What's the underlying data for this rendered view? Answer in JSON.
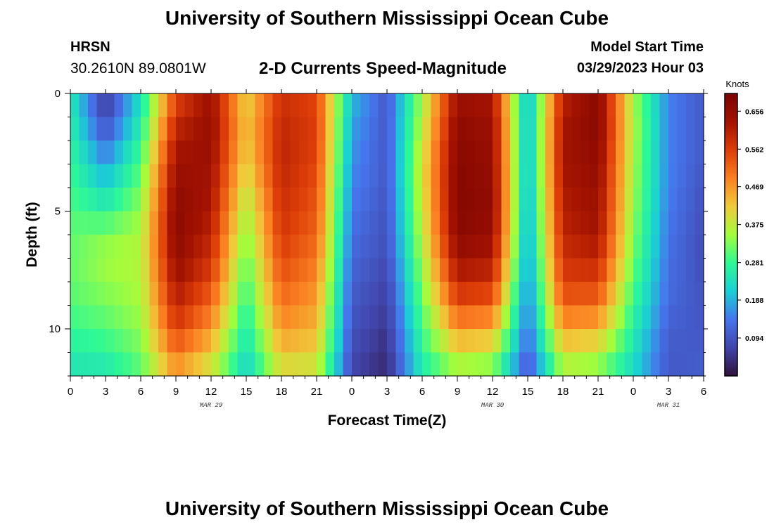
{
  "header": {
    "title": "University of Southern Mississippi Ocean Cube",
    "station": "HRSN",
    "coords": "30.2610N  89.0801W",
    "product": "2-D Currents Speed-Magnitude",
    "model_start_label": "Model Start Time",
    "model_start_value": "03/29/2023 Hour 03"
  },
  "footer": {
    "title": "University of Southern Mississippi Ocean Cube"
  },
  "chart_data": {
    "type": "heatmap",
    "xlabel": "Forecast Time(Z)",
    "ylabel": "Depth (ft)",
    "x_range_hours": [
      0,
      54
    ],
    "y_range_ft": [
      0,
      12
    ],
    "x_ticks": [
      "0",
      "3",
      "6",
      "9",
      "12",
      "15",
      "18",
      "21",
      "0",
      "3",
      "6",
      "9",
      "12",
      "15",
      "18",
      "21",
      "0",
      "3",
      "6"
    ],
    "y_ticks": [
      "0",
      "5",
      "10"
    ],
    "date_labels": [
      {
        "hour": 12,
        "text": "MAR 29"
      },
      {
        "hour": 36,
        "text": "MAR 30"
      },
      {
        "hour": 51,
        "text": "MAR 31"
      }
    ],
    "colorbar": {
      "unit": "Knots",
      "min": 0.0,
      "max": 0.7,
      "ticks": [
        "0.656",
        "0.562",
        "0.469",
        "0.375",
        "0.281",
        "0.188",
        "0.094"
      ],
      "tick_values": [
        0.656,
        0.562,
        0.469,
        0.375,
        0.281,
        0.188,
        0.094
      ]
    },
    "depths_ft": [
      0,
      1,
      2,
      3,
      4,
      5,
      6,
      7,
      8,
      9,
      10,
      11,
      12
    ],
    "times_h": [
      0,
      3,
      6,
      9,
      12,
      15,
      18,
      21,
      24,
      27,
      30,
      33,
      36,
      39,
      42,
      45,
      48,
      51,
      54
    ],
    "speed_knots": [
      [
        0.25,
        0.05,
        0.23,
        0.55,
        0.64,
        0.4,
        0.58,
        0.55,
        0.2,
        0.1,
        0.35,
        0.64,
        0.62,
        0.18,
        0.6,
        0.67,
        0.35,
        0.15,
        0.1
      ],
      [
        0.26,
        0.07,
        0.25,
        0.58,
        0.65,
        0.42,
        0.59,
        0.56,
        0.18,
        0.1,
        0.36,
        0.66,
        0.64,
        0.18,
        0.62,
        0.68,
        0.36,
        0.15,
        0.1
      ],
      [
        0.27,
        0.12,
        0.27,
        0.62,
        0.65,
        0.42,
        0.6,
        0.56,
        0.17,
        0.1,
        0.38,
        0.67,
        0.65,
        0.18,
        0.63,
        0.67,
        0.36,
        0.15,
        0.1
      ],
      [
        0.28,
        0.17,
        0.3,
        0.64,
        0.64,
        0.4,
        0.6,
        0.55,
        0.16,
        0.1,
        0.39,
        0.68,
        0.65,
        0.18,
        0.63,
        0.66,
        0.35,
        0.15,
        0.1
      ],
      [
        0.29,
        0.22,
        0.32,
        0.66,
        0.63,
        0.38,
        0.59,
        0.54,
        0.15,
        0.1,
        0.39,
        0.68,
        0.66,
        0.18,
        0.62,
        0.65,
        0.35,
        0.15,
        0.09
      ],
      [
        0.3,
        0.27,
        0.34,
        0.67,
        0.62,
        0.35,
        0.58,
        0.53,
        0.14,
        0.09,
        0.38,
        0.68,
        0.66,
        0.17,
        0.61,
        0.64,
        0.34,
        0.14,
        0.09
      ],
      [
        0.31,
        0.33,
        0.36,
        0.67,
        0.6,
        0.33,
        0.57,
        0.52,
        0.13,
        0.09,
        0.37,
        0.67,
        0.65,
        0.17,
        0.6,
        0.63,
        0.33,
        0.14,
        0.08
      ],
      [
        0.31,
        0.35,
        0.36,
        0.66,
        0.58,
        0.31,
        0.55,
        0.5,
        0.12,
        0.08,
        0.35,
        0.64,
        0.62,
        0.16,
        0.58,
        0.6,
        0.32,
        0.13,
        0.08
      ],
      [
        0.31,
        0.34,
        0.36,
        0.63,
        0.55,
        0.29,
        0.53,
        0.48,
        0.11,
        0.07,
        0.33,
        0.6,
        0.58,
        0.15,
        0.56,
        0.56,
        0.3,
        0.13,
        0.09
      ],
      [
        0.3,
        0.32,
        0.35,
        0.6,
        0.51,
        0.27,
        0.5,
        0.46,
        0.1,
        0.06,
        0.31,
        0.54,
        0.52,
        0.14,
        0.52,
        0.51,
        0.28,
        0.12,
        0.09
      ],
      [
        0.28,
        0.3,
        0.34,
        0.56,
        0.47,
        0.25,
        0.47,
        0.44,
        0.09,
        0.05,
        0.29,
        0.47,
        0.45,
        0.13,
        0.46,
        0.44,
        0.26,
        0.11,
        0.1
      ],
      [
        0.26,
        0.27,
        0.32,
        0.51,
        0.42,
        0.23,
        0.43,
        0.41,
        0.08,
        0.04,
        0.27,
        0.4,
        0.38,
        0.11,
        0.4,
        0.38,
        0.24,
        0.1,
        0.1
      ],
      [
        0.24,
        0.24,
        0.3,
        0.45,
        0.37,
        0.21,
        0.38,
        0.37,
        0.07,
        0.03,
        0.25,
        0.32,
        0.3,
        0.09,
        0.33,
        0.31,
        0.22,
        0.1,
        0.11
      ]
    ]
  }
}
